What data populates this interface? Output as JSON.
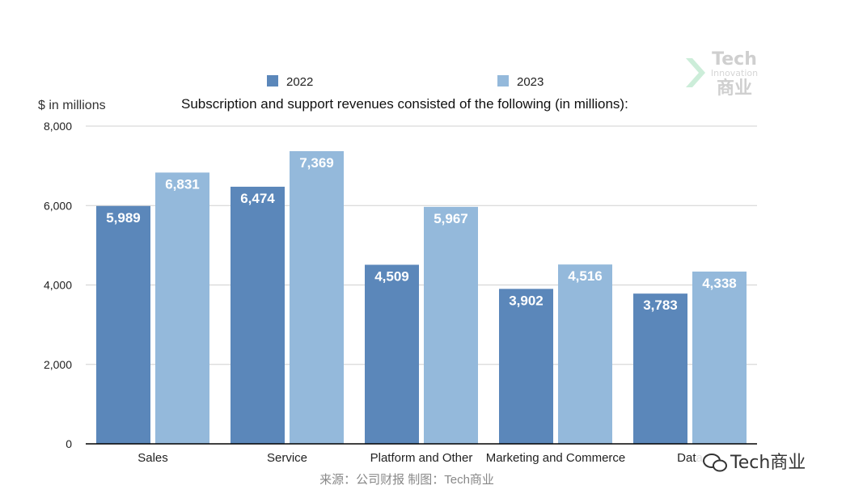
{
  "chart_data": {
    "type": "bar",
    "title": "Subscription and support revenues consisted of the following (in millions):",
    "ylabel": "$ in millions",
    "xlabel": "",
    "categories": [
      "Sales",
      "Service",
      "Platform and Other",
      "Marketing and Commerce",
      "Data"
    ],
    "series": [
      {
        "name": "2022",
        "values": [
          5989,
          6474,
          4509,
          3902,
          3783
        ],
        "labels": [
          "5,989",
          "6,474",
          "4,509",
          "3,902",
          "3,783"
        ],
        "color": "#5b87ba"
      },
      {
        "name": "2023",
        "values": [
          6831,
          7369,
          5967,
          4516,
          4338
        ],
        "labels": [
          "6,831",
          "7,369",
          "5,967",
          "4,516",
          "4,338"
        ],
        "color": "#94b9db"
      }
    ],
    "ylim": [
      0,
      8000
    ],
    "yticks": [
      0,
      2000,
      4000,
      6000,
      8000
    ],
    "ytick_labels": [
      "0",
      "2,000",
      "4,000",
      "6,000",
      "8,000"
    ],
    "grid": true,
    "legend_position": "top"
  },
  "source_note": "来源：公司财报 制图：Tech商业",
  "watermark": {
    "line1": "Tech",
    "line2": "Innovation",
    "line3": "商业"
  },
  "wechat_label": "Tech商业"
}
